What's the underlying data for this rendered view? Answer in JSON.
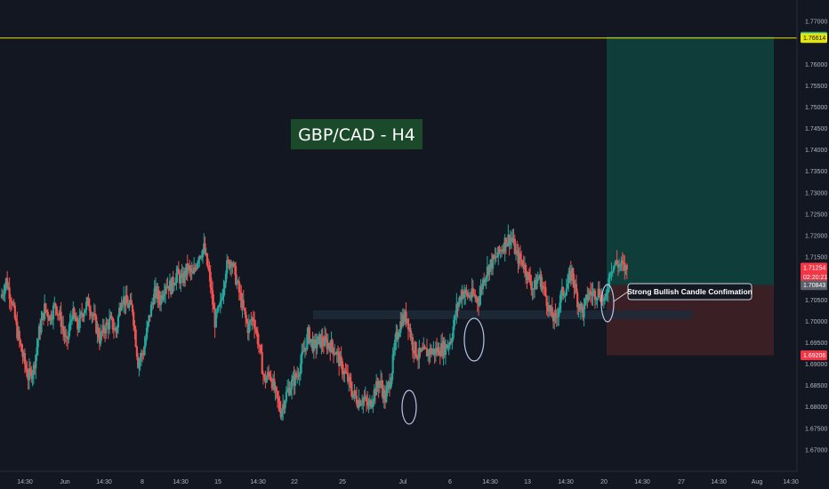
{
  "chart_data": {
    "type": "candlestick",
    "title": "GBP/CAD -  H4",
    "ylim": [
      1.665,
      1.775
    ],
    "y_ticks": [
      "1.77000",
      "1.76000",
      "1.75500",
      "1.75000",
      "1.74500",
      "1.74000",
      "1.73500",
      "1.73000",
      "1.72500",
      "1.72000",
      "1.71500",
      "1.70500",
      "1.70000",
      "1.69500",
      "1.69000",
      "1.68500",
      "1.68000",
      "1.67500",
      "1.67000"
    ],
    "x_ticks": [
      "14:30",
      "Jun",
      "14:30",
      "8",
      "14:30",
      "15",
      "14:30",
      "22",
      "25",
      "Jul",
      "6",
      "14:30",
      "13",
      "14:30",
      "20",
      "14:30",
      "27",
      "14:30",
      "Aug",
      "14:30"
    ],
    "price_tags": {
      "target": "1.76643",
      "hline": "1.76614",
      "current": "1.71254",
      "countdown": "02:20:21",
      "entry": "1.70843",
      "stop": "1.69206"
    },
    "hline_price": 1.76614,
    "position": {
      "target": 1.76643,
      "entry": 1.70843,
      "stop": 1.69206
    },
    "annotation": "Strong Bullish  Candle Confimation",
    "colors": {
      "background": "#131722",
      "up": "#26a69a",
      "down": "#ef5350",
      "hline": "#e5e510",
      "profit_zone": "#0f3d3a",
      "loss_zone": "#3a1f25",
      "title_bg": "#1b4a2a"
    },
    "candle_path": [
      1.7055,
      1.7095,
      1.705,
      1.6975,
      1.692,
      1.687,
      1.689,
      1.6975,
      1.703,
      1.701,
      1.704,
      1.7,
      1.6945,
      1.702,
      1.6985,
      1.7025,
      1.7045,
      1.7005,
      1.696,
      1.6985,
      1.7,
      1.6975,
      1.706,
      1.704,
      1.703,
      1.6905,
      1.693,
      1.7005,
      1.707,
      1.705,
      1.709,
      1.708,
      1.711,
      1.7095,
      1.7125,
      1.7105,
      1.7155,
      1.717,
      1.7105,
      1.7,
      1.7035,
      1.7125,
      1.7145,
      1.709,
      1.7035,
      1.6985,
      1.701,
      1.6945,
      1.686,
      1.688,
      1.683,
      1.679,
      1.683,
      1.6855,
      1.6875,
      1.692,
      1.697,
      1.694,
      1.6955,
      1.695,
      1.6945,
      1.693,
      1.6895,
      1.687,
      1.6835,
      1.6815,
      1.682,
      1.68,
      1.6835,
      1.686,
      1.682,
      1.687,
      1.696,
      1.7005,
      1.701,
      1.6945,
      1.692,
      1.6925,
      1.693,
      1.693,
      1.6935,
      1.694,
      1.696,
      1.703,
      1.707,
      1.706,
      1.706,
      1.705,
      1.7105,
      1.713,
      1.7145,
      1.7165,
      1.719,
      1.7195,
      1.715,
      1.714,
      1.7105,
      1.7075,
      1.7105,
      1.707,
      1.702,
      1.7,
      1.706,
      1.708,
      1.7115,
      1.705,
      1.702,
      1.7065,
      1.7065,
      1.707,
      1.704,
      1.7125,
      1.7135,
      1.713,
      1.712
    ]
  }
}
